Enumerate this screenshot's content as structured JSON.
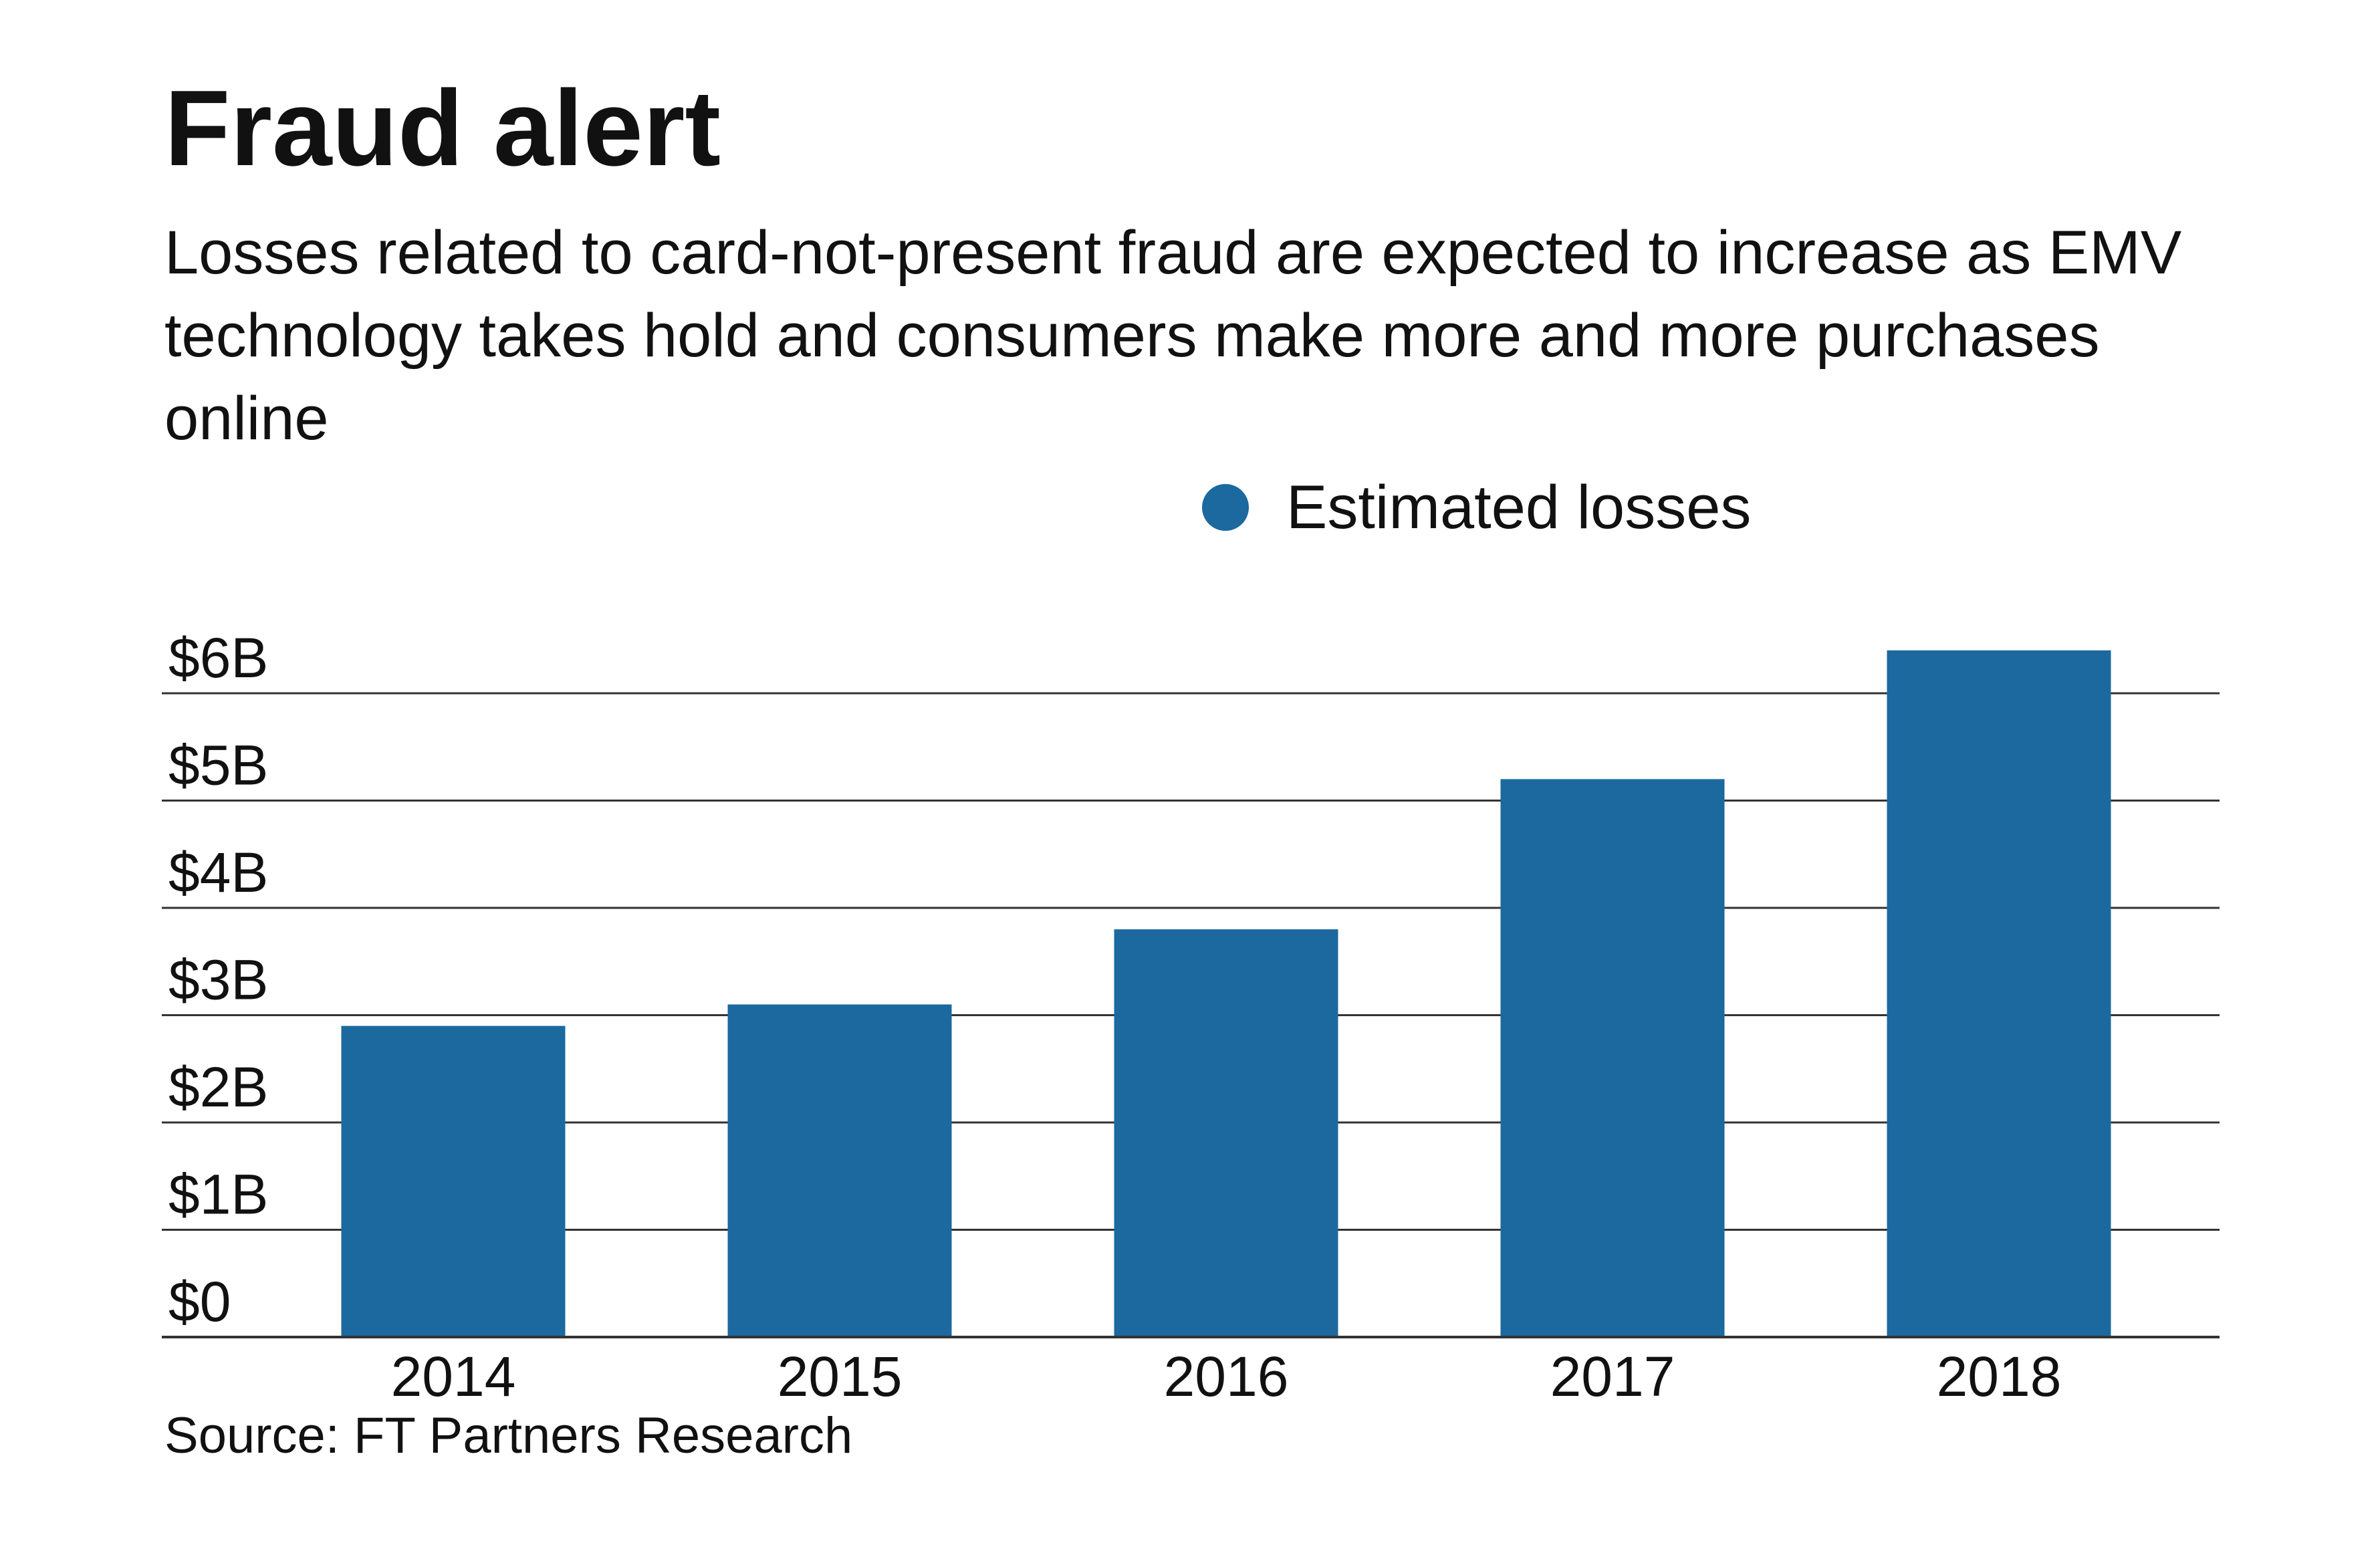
{
  "title": "Fraud alert",
  "subtitle": "Losses related to card-not-present fraud are expected to increase as EMV technology takes hold and consumers make more and more purchases online",
  "source": "Source: FT Partners Research",
  "colors": {
    "bar": "#1b699f",
    "grid": "#333333",
    "text": "#111111"
  },
  "chart_data": {
    "type": "bar",
    "title": "Fraud alert",
    "categories": [
      "2014",
      "2015",
      "2016",
      "2017",
      "2018"
    ],
    "series": [
      {
        "name": "Estimated losses",
        "values": [
          2.9,
          3.1,
          3.8,
          5.2,
          6.4
        ]
      }
    ],
    "ylim": [
      0,
      6
    ],
    "yticks": [
      0,
      1,
      2,
      3,
      4,
      5,
      6
    ],
    "ytick_labels": [
      "$0",
      "$1B",
      "$2B",
      "$3B",
      "$4B",
      "$5B",
      "$6B"
    ],
    "xlabel": "",
    "ylabel": "",
    "grid": true,
    "legend_position": "top-right"
  }
}
